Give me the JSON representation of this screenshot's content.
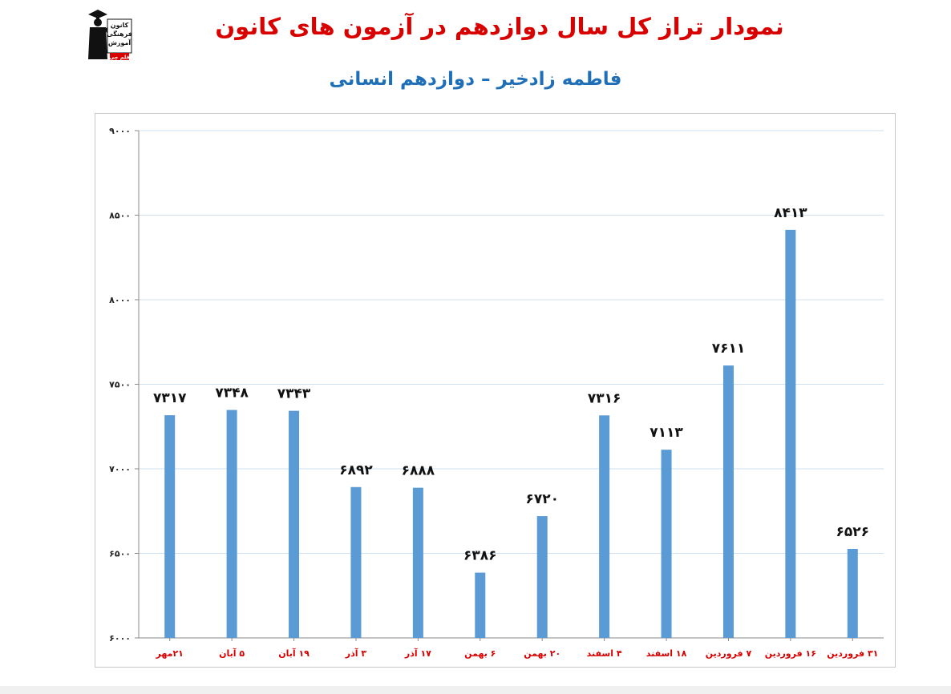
{
  "header": {
    "title": "نمودار تراز کل سال دوازدهم در آزمون های کانون",
    "subtitle": "فاطمه زادخیر – دوازدهم انسانی"
  },
  "logo": {
    "icon": "graduate-logo-icon",
    "lines": [
      "کانون",
      "فرهنگی",
      "آموزش"
    ],
    "badge": "قلم چی"
  },
  "colors": {
    "title": "#d90000",
    "subtitle": "#1f6fb8",
    "bar": "#5b9bd5",
    "grid": "#cfe0ee",
    "category_label": "#d90000",
    "value_label": "#111111"
  },
  "chart_data": {
    "type": "bar",
    "categories": [
      "۲۱مهر",
      "۵ آبان",
      "۱۹ آبان",
      "۳ آذر",
      "۱۷ آذر",
      "۶ بهمن",
      "۲۰ بهمن",
      "۴ اسفند",
      "۱۸ اسفند",
      "۷ فروردین",
      "۱۶ فروردین",
      "۳۱ فروردین"
    ],
    "values": [
      7317,
      7348,
      7343,
      6892,
      6888,
      6386,
      6720,
      7316,
      7113,
      7611,
      8413,
      6526
    ],
    "value_labels": [
      "۷۳۱۷",
      "۷۳۴۸",
      "۷۳۴۳",
      "۶۸۹۲",
      "۶۸۸۸",
      "۶۳۸۶",
      "۶۷۲۰",
      "۷۳۱۶",
      "۷۱۱۳",
      "۷۶۱۱",
      "۸۴۱۳",
      "۶۵۲۶"
    ],
    "ylim": [
      6000,
      9000
    ],
    "yticks": [
      6000,
      6500,
      7000,
      7500,
      8000,
      8500,
      9000
    ],
    "ytick_labels": [
      "۶۰۰۰",
      "۶۵۰۰",
      "۷۰۰۰",
      "۷۵۰۰",
      "۸۰۰۰",
      "۸۵۰۰",
      "۹۰۰۰"
    ],
    "grid": true,
    "legend": "none",
    "title": "",
    "xlabel": "",
    "ylabel": ""
  }
}
